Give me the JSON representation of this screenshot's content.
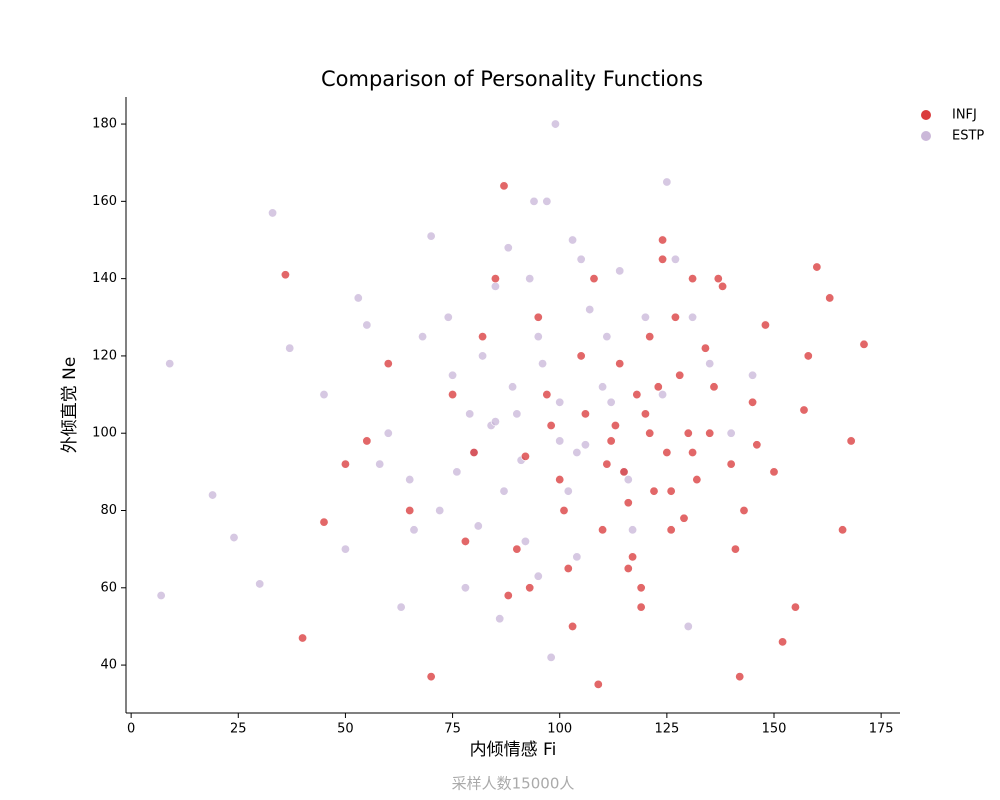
{
  "chart_data": {
    "type": "scatter",
    "title": "Comparison of Personality Functions",
    "x_label": "内倾情感 Fi",
    "y_label": "外倾直觉 Ne",
    "note": "采样人数15000人",
    "legend_position": "upper right",
    "xlim": [
      -1.2,
      179.4
    ],
    "xticks": [
      0,
      25,
      50,
      75,
      100,
      125,
      150,
      175
    ],
    "ylim": [
      27.6,
      187
    ],
    "yticks": [
      40,
      60,
      80,
      100,
      120,
      140,
      160,
      180
    ],
    "series": [
      {
        "name": "INFJ",
        "color": "#d62728",
        "x": [
          109,
          70,
          142,
          36,
          171,
          168,
          166,
          40,
          87,
          152,
          155,
          160,
          158,
          130,
          125,
          120,
          115,
          118,
          122,
          128,
          135,
          140,
          145,
          110,
          105,
          100,
          95,
          90,
          85,
          80,
          75,
          65,
          60,
          55,
          50,
          45,
          112,
          117,
          123,
          127,
          132,
          137,
          143,
          148,
          113,
          119,
          124,
          129,
          134,
          102,
          97,
          92,
          88,
          82,
          78,
          121,
          126,
          131,
          114,
          116,
          138,
          150,
          157,
          163,
          108,
          103,
          98,
          93,
          126,
          121,
          131,
          116,
          111,
          136,
          141,
          146,
          106,
          101,
          124,
          119
        ],
        "values": [
          35,
          37,
          37,
          141,
          123,
          98,
          75,
          47,
          164,
          46,
          55,
          143,
          120,
          100,
          95,
          105,
          90,
          110,
          85,
          115,
          100,
          92,
          108,
          75,
          120,
          88,
          130,
          70,
          140,
          95,
          110,
          80,
          118,
          98,
          92,
          77,
          98,
          68,
          112,
          130,
          88,
          140,
          80,
          128,
          102,
          60,
          150,
          78,
          122,
          65,
          110,
          94,
          58,
          125,
          72,
          100,
          85,
          95,
          118,
          82,
          138,
          90,
          106,
          135,
          140,
          50,
          102,
          60,
          75,
          125,
          140,
          65,
          92,
          112,
          70,
          97,
          105,
          80,
          145,
          55
        ]
      },
      {
        "name": "ESTP",
        "color": "#c5b0d5",
        "x": [
          9,
          7,
          99,
          33,
          19,
          24,
          30,
          37,
          45,
          50,
          55,
          60,
          65,
          70,
          75,
          80,
          85,
          90,
          95,
          100,
          105,
          110,
          115,
          120,
          125,
          130,
          135,
          140,
          72,
          78,
          82,
          88,
          92,
          97,
          102,
          107,
          112,
          117,
          68,
          63,
          58,
          53,
          84,
          94,
          104,
          114,
          124,
          76,
          86,
          96,
          106,
          116,
          74,
          81,
          89,
          98,
          103,
          93,
          87,
          79,
          66,
          131,
          127,
          145,
          100,
          91,
          85,
          111,
          95,
          104
        ],
        "values": [
          118,
          58,
          180,
          157,
          84,
          73,
          61,
          122,
          110,
          70,
          128,
          100,
          88,
          151,
          115,
          95,
          138,
          105,
          125,
          98,
          145,
          112,
          90,
          130,
          165,
          50,
          118,
          100,
          80,
          60,
          120,
          148,
          72,
          160,
          85,
          132,
          108,
          75,
          125,
          55,
          92,
          135,
          102,
          160,
          68,
          142,
          110,
          90,
          52,
          118,
          97,
          88,
          130,
          76,
          112,
          42,
          150,
          140,
          85,
          105,
          75,
          130,
          145,
          115,
          108,
          93,
          103,
          125,
          63,
          95
        ]
      }
    ]
  }
}
